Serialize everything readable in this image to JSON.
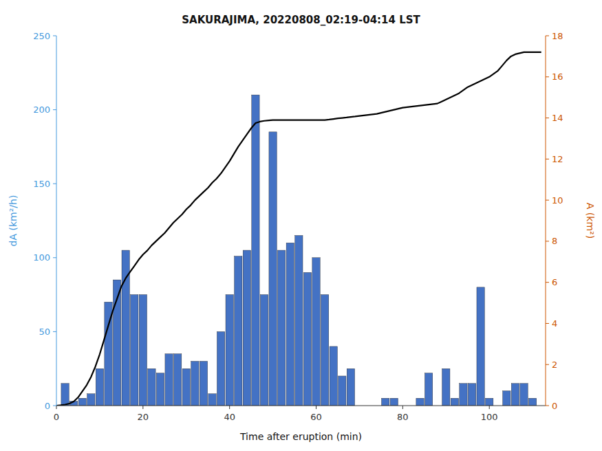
{
  "chart_data": {
    "type": "bar",
    "title": "SAKURAJIMA, 20220808_02:19-04:14 LST",
    "xlabel": "Time after eruption (min)",
    "ylabel": "dA (km²/h)",
    "y2label": "A (km²)",
    "xlim": [
      0,
      113
    ],
    "xticks": [
      0,
      20,
      40,
      60,
      80,
      100
    ],
    "ylim": [
      0,
      250
    ],
    "yticks": [
      0,
      50,
      100,
      150,
      200,
      250
    ],
    "y2lim": [
      0,
      18
    ],
    "y2ticks": [
      0,
      2,
      4,
      6,
      8,
      10,
      12,
      14,
      16,
      18
    ],
    "series": [
      {
        "type": "bar",
        "color": "#4472C4",
        "x": [
          2,
          4,
          6,
          8,
          10,
          12,
          14,
          16,
          18,
          20,
          22,
          24,
          26,
          28,
          30,
          32,
          34,
          36,
          38,
          40,
          42,
          44,
          46,
          48,
          50,
          52,
          54,
          56,
          58,
          60,
          62,
          64,
          66,
          68,
          76,
          78,
          84,
          86,
          90,
          92,
          94,
          96,
          98,
          100,
          102,
          104,
          106,
          108,
          110
        ],
        "values": [
          15,
          3,
          5,
          8,
          25,
          70,
          85,
          105,
          75,
          75,
          25,
          22,
          35,
          35,
          25,
          30,
          30,
          8,
          50,
          75,
          101,
          105,
          210,
          75,
          185,
          105,
          110,
          115,
          90,
          100,
          75,
          40,
          20,
          25,
          5,
          5,
          5,
          22,
          25,
          5,
          15,
          15,
          80,
          5,
          0,
          10,
          15,
          15,
          5
        ]
      },
      {
        "type": "line",
        "color": "#000000",
        "axis": "y2",
        "x": [
          0,
          1,
          2,
          3,
          4,
          5,
          6,
          7,
          8,
          9,
          10,
          11,
          12,
          13,
          14,
          15,
          16,
          17,
          18,
          19,
          20,
          21,
          22,
          23,
          24,
          25,
          26,
          27,
          28,
          29,
          30,
          31,
          32,
          33,
          34,
          35,
          36,
          37,
          38,
          39,
          40,
          41,
          42,
          43,
          44,
          45,
          46,
          47,
          48,
          49,
          50,
          51,
          52,
          53,
          54,
          55,
          56,
          57,
          58,
          59,
          60,
          61,
          62,
          63,
          64,
          65,
          66,
          67,
          68,
          69,
          70,
          72,
          74,
          76,
          78,
          80,
          82,
          84,
          86,
          88,
          89,
          90,
          91,
          92,
          93,
          94,
          95,
          96,
          97,
          98,
          99,
          100,
          101,
          102,
          103,
          104,
          105,
          106,
          107,
          108,
          109,
          110,
          111,
          112
        ],
        "values": [
          0,
          0.02,
          0.05,
          0.1,
          0.2,
          0.4,
          0.7,
          1.0,
          1.4,
          1.9,
          2.5,
          3.2,
          3.9,
          4.6,
          5.2,
          5.8,
          6.2,
          6.5,
          6.8,
          7.1,
          7.35,
          7.55,
          7.8,
          8.0,
          8.2,
          8.4,
          8.65,
          8.9,
          9.1,
          9.3,
          9.55,
          9.75,
          10.0,
          10.2,
          10.4,
          10.6,
          10.85,
          11.05,
          11.3,
          11.6,
          11.9,
          12.25,
          12.6,
          12.9,
          13.2,
          13.5,
          13.75,
          13.82,
          13.86,
          13.88,
          13.9,
          13.9,
          13.9,
          13.9,
          13.9,
          13.9,
          13.9,
          13.9,
          13.9,
          13.9,
          13.9,
          13.9,
          13.9,
          13.92,
          13.95,
          13.98,
          14.0,
          14.02,
          14.05,
          14.07,
          14.1,
          14.15,
          14.2,
          14.3,
          14.4,
          14.5,
          14.55,
          14.6,
          14.65,
          14.7,
          14.8,
          14.9,
          15.0,
          15.1,
          15.2,
          15.35,
          15.5,
          15.6,
          15.7,
          15.8,
          15.9,
          16.0,
          16.15,
          16.3,
          16.55,
          16.8,
          17.0,
          17.1,
          17.15,
          17.2,
          17.2,
          17.2,
          17.2,
          17.2
        ]
      }
    ]
  }
}
